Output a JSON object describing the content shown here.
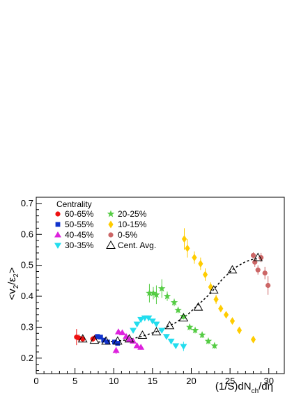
{
  "chart_data": {
    "type": "scatter",
    "xlabel": {
      "pre": "(1/S)dN",
      "sub": "ch",
      "post": "/dη"
    },
    "ylabel": {
      "open": "<v",
      "sub1": "2",
      "mid": "/ε",
      "sub2": "2",
      "close": ">"
    },
    "xlim": [
      0,
      32
    ],
    "ylim": [
      0.15,
      0.72
    ],
    "xticks": [
      0,
      5,
      10,
      15,
      20,
      25,
      30
    ],
    "yticks": [
      0.2,
      0.3,
      0.4,
      0.5,
      0.6,
      0.7
    ],
    "xtick_labels": [
      "0",
      "5",
      "10",
      "15",
      "20",
      "25",
      "30"
    ],
    "ytick_labels": [
      "0.2",
      "0.3",
      "0.4",
      "0.5",
      "0.6",
      "0.7"
    ],
    "grid": false,
    "legend_title": "Centrality",
    "legend_position": "top-left",
    "series": [
      {
        "name": "60-65%",
        "marker": "circle",
        "color": "#ee1111",
        "x": [
          5.2,
          5.5,
          6.0,
          7.3,
          7.7
        ],
        "y": [
          0.268,
          0.265,
          0.262,
          0.262,
          0.268
        ],
        "err": [
          0.026,
          0.012,
          0.01,
          0.01,
          0.008
        ]
      },
      {
        "name": "50-55%",
        "marker": "square",
        "color": "#1133cc",
        "x": [
          7.9,
          8.3,
          8.7,
          9.2,
          10.1,
          10.5
        ],
        "y": [
          0.27,
          0.268,
          0.258,
          0.252,
          0.252,
          0.248
        ],
        "err": [
          0.006,
          0.006,
          0.006,
          0.006,
          0.006,
          0.006
        ]
      },
      {
        "name": "40-45%",
        "marker": "triangle-up",
        "color": "#dd22dd",
        "x": [
          10.3,
          10.6,
          11.1,
          11.6,
          12.0,
          12.5,
          13.0,
          13.5
        ],
        "y": [
          0.225,
          0.285,
          0.282,
          0.27,
          0.26,
          0.255,
          0.24,
          0.235
        ],
        "err": [
          0.012,
          0.008,
          0.008,
          0.008,
          0.008,
          0.008,
          0.008,
          0.008
        ]
      },
      {
        "name": "30-35%",
        "marker": "triangle-down",
        "color": "#22ddee",
        "x": [
          12.5,
          13.0,
          13.5,
          14.0,
          14.5,
          15.0,
          15.5,
          16.2,
          16.8,
          17.4,
          18.0,
          19.0
        ],
        "y": [
          0.29,
          0.31,
          0.325,
          0.33,
          0.33,
          0.32,
          0.31,
          0.29,
          0.27,
          0.255,
          0.24,
          0.238
        ],
        "err": [
          0.008,
          0.008,
          0.008,
          0.008,
          0.008,
          0.008,
          0.008,
          0.008,
          0.008,
          0.008,
          0.008,
          0.015
        ]
      },
      {
        "name": "20-25%",
        "marker": "star",
        "color": "#55cc44",
        "x": [
          14.6,
          15.1,
          15.5,
          16.2,
          16.9,
          17.8,
          18.3,
          19.0,
          19.8,
          20.5,
          21.4,
          22.2,
          23.0
        ],
        "y": [
          0.41,
          0.41,
          0.405,
          0.425,
          0.4,
          0.38,
          0.355,
          0.335,
          0.3,
          0.29,
          0.275,
          0.255,
          0.24
        ],
        "err": [
          0.03,
          0.02,
          0.03,
          0.03,
          0.015,
          0.012,
          0.01,
          0.01,
          0.01,
          0.01,
          0.01,
          0.01,
          0.01
        ]
      },
      {
        "name": "10-15%",
        "marker": "diamond",
        "color": "#ffcc00",
        "x": [
          19.1,
          19.5,
          20.4,
          21.2,
          21.8,
          22.5,
          23.2,
          23.8,
          24.5,
          25.3,
          26.2,
          28.0
        ],
        "y": [
          0.585,
          0.555,
          0.525,
          0.505,
          0.47,
          0.43,
          0.39,
          0.36,
          0.34,
          0.32,
          0.29,
          0.26
        ],
        "err": [
          0.035,
          0.03,
          0.02,
          0.02,
          0.02,
          0.015,
          0.015,
          0.01,
          0.01,
          0.01,
          0.01,
          0.01
        ]
      },
      {
        "name": "0-5%",
        "marker": "circle",
        "color": "#cc6666",
        "x": [
          28.0,
          28.2,
          28.6,
          29.0,
          29.5,
          29.9
        ],
        "y": [
          0.532,
          0.51,
          0.485,
          0.525,
          0.475,
          0.435
        ],
        "err": [
          0.01,
          0.015,
          0.015,
          0.015,
          0.02,
          0.03
        ]
      },
      {
        "name": "Cent. Avg.",
        "marker": "triangle-open",
        "color": "#000000",
        "x": [
          6.0,
          7.5,
          9.0,
          10.5,
          12.0,
          13.7,
          15.5,
          17.2,
          19.0,
          20.9,
          22.9,
          25.3,
          28.6
        ],
        "y": [
          0.262,
          0.258,
          0.255,
          0.255,
          0.262,
          0.274,
          0.285,
          0.305,
          0.33,
          0.365,
          0.42,
          0.485,
          0.525
        ],
        "err": [
          0,
          0,
          0,
          0,
          0,
          0,
          0,
          0,
          0,
          0,
          0,
          0,
          0
        ]
      }
    ],
    "fit_curve": {
      "style": "dashed",
      "color": "#000000",
      "x": [
        8.0,
        10.0,
        12.0,
        14.0,
        16.0,
        18.0,
        19.5,
        21.0,
        22.5,
        24.0,
        25.5,
        27.0,
        28.0,
        29.0
      ],
      "y": [
        0.252,
        0.254,
        0.26,
        0.273,
        0.29,
        0.315,
        0.34,
        0.375,
        0.41,
        0.455,
        0.49,
        0.512,
        0.52,
        0.522
      ]
    }
  }
}
